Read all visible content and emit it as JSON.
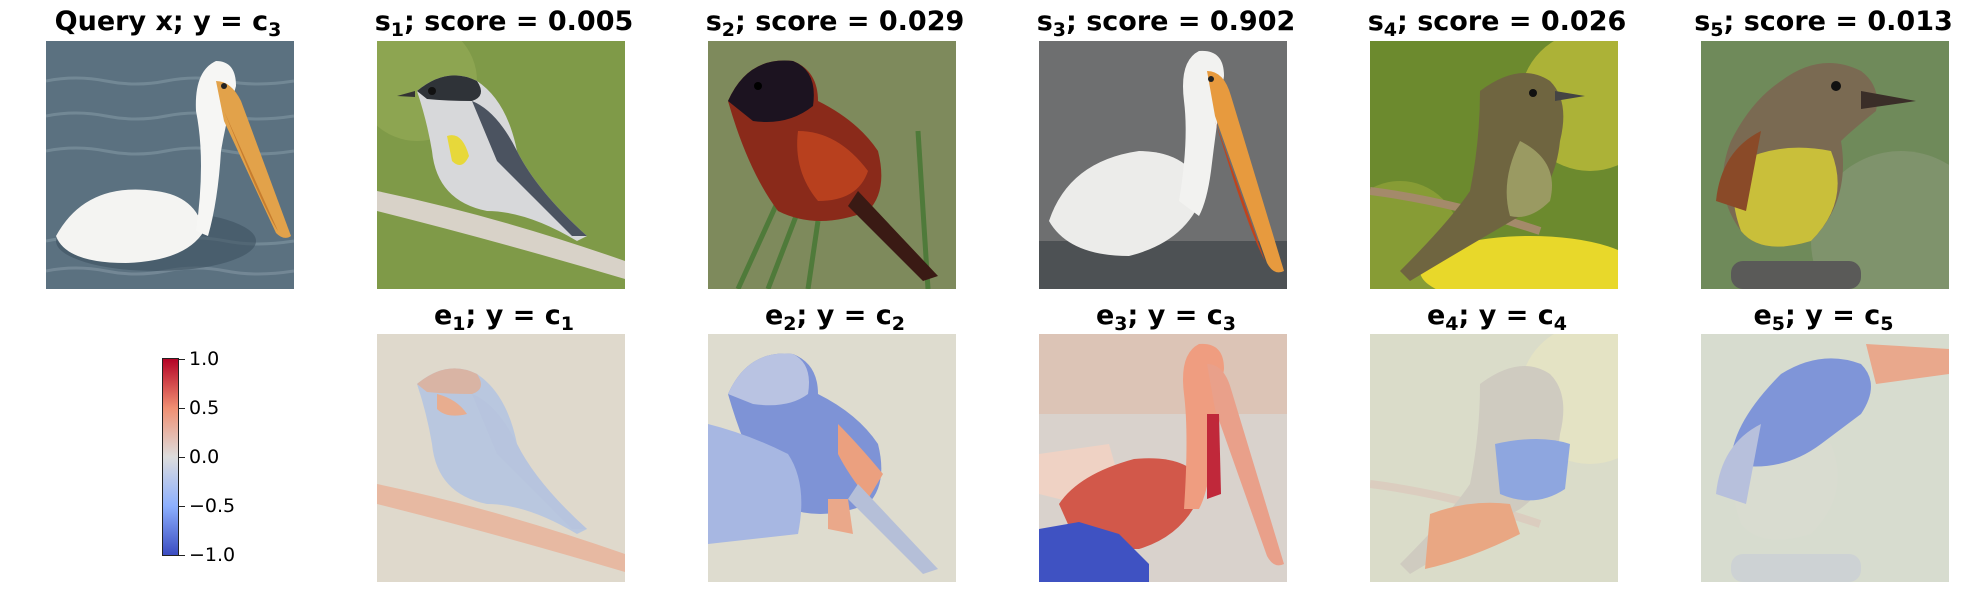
{
  "top_titles": [
    {
      "pre": "Query x; y",
      "eq": " = c",
      "sub": "3",
      "post": ""
    },
    {
      "pre": "s",
      "sub": "1",
      "post": "; score = 0.005"
    },
    {
      "pre": "s",
      "sub": "2",
      "post": "; score = 0.029"
    },
    {
      "pre": "s",
      "sub": "3",
      "post": "; score = 0.902"
    },
    {
      "pre": "s",
      "sub": "4",
      "post": "; score = 0.026"
    },
    {
      "pre": "s",
      "sub": "5",
      "post": "; score = 0.013"
    }
  ],
  "bottom_titles": [
    {
      "pre": "e",
      "sub": "1",
      "post": "; y = c",
      "sub2": "1"
    },
    {
      "pre": "e",
      "sub": "2",
      "post": "; y = c",
      "sub2": "2"
    },
    {
      "pre": "e",
      "sub": "3",
      "post": "; y = c",
      "sub2": "3"
    },
    {
      "pre": "e",
      "sub": "4",
      "post": "; y = c",
      "sub2": "4"
    },
    {
      "pre": "e",
      "sub": "5",
      "post": "; y = c",
      "sub2": "5"
    }
  ],
  "colorbar": {
    "colormap": "coolwarm",
    "range": [
      -1.0,
      1.0
    ],
    "tick_labels": [
      "1.0",
      "0.5",
      "0.0",
      "−0.5",
      "−1.0"
    ],
    "colors": {
      "high": "#b40426",
      "mid": "#dddddd",
      "low": "#3b4cc0"
    }
  },
  "images": {
    "query": "white pelican swimming on water",
    "s1": "yellow-rumped warbler on branch",
    "s2": "orchard oriole on grass stems",
    "s3": "white pelican on water",
    "s4": "flycatcher on branch with yellow flowers",
    "s5": "great crested flycatcher perched on post"
  }
}
